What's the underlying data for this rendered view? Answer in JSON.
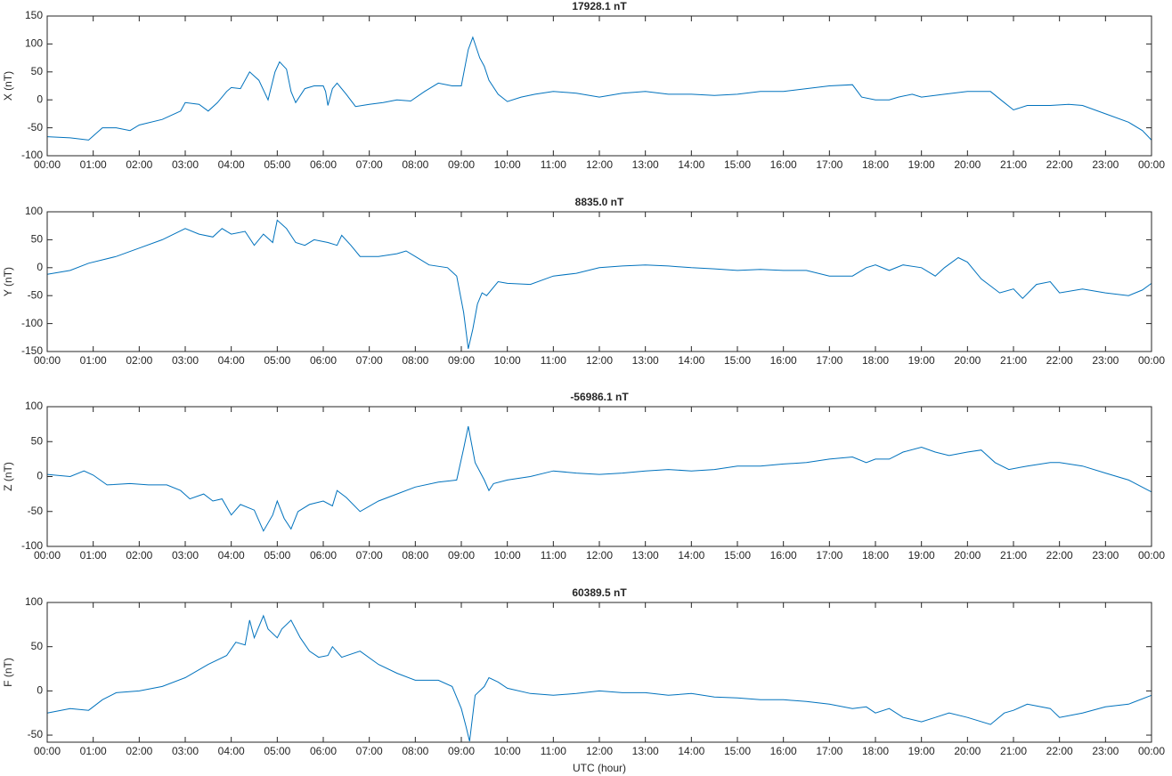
{
  "chart_data": [
    {
      "type": "line",
      "title": "17928.1 nT",
      "y_label": "X (nT)",
      "color": "#0072bd",
      "xlim": [
        0,
        24
      ],
      "ylim": [
        -100,
        150
      ],
      "yticks": [
        -100,
        -50,
        0,
        50,
        100,
        150
      ],
      "xticks": [
        {
          "value": 0,
          "label": "00:00"
        },
        {
          "value": 1,
          "label": "01:00"
        },
        {
          "value": 2,
          "label": "02:00"
        },
        {
          "value": 3,
          "label": "03:00"
        },
        {
          "value": 4,
          "label": "04:00"
        },
        {
          "value": 5,
          "label": "05:00"
        },
        {
          "value": 6,
          "label": "06:00"
        },
        {
          "value": 7,
          "label": "07:00"
        },
        {
          "value": 8,
          "label": "08:00"
        },
        {
          "value": 9,
          "label": "09:00"
        },
        {
          "value": 10,
          "label": "10:00"
        },
        {
          "value": 11,
          "label": "11:00"
        },
        {
          "value": 12,
          "label": "12:00"
        },
        {
          "value": 13,
          "label": "13:00"
        },
        {
          "value": 14,
          "label": "14:00"
        },
        {
          "value": 15,
          "label": "15:00"
        },
        {
          "value": 16,
          "label": "16:00"
        },
        {
          "value": 17,
          "label": "17:00"
        },
        {
          "value": 18,
          "label": "18:00"
        },
        {
          "value": 19,
          "label": "19:00"
        },
        {
          "value": 20,
          "label": "20:00"
        },
        {
          "value": 21,
          "label": "21:00"
        },
        {
          "value": 22,
          "label": "22:00"
        },
        {
          "value": 23,
          "label": "23:00"
        },
        {
          "value": 24,
          "label": "00:00"
        }
      ],
      "x": [
        0,
        0.5,
        0.9,
        1.2,
        1.5,
        1.8,
        2,
        2.5,
        2.9,
        3,
        3.3,
        3.5,
        3.7,
        3.9,
        4,
        4.2,
        4.4,
        4.6,
        4.8,
        4.95,
        5.05,
        5.2,
        5.3,
        5.4,
        5.6,
        5.8,
        6,
        6.05,
        6.1,
        6.2,
        6.3,
        6.5,
        6.7,
        7,
        7.3,
        7.6,
        7.9,
        8.2,
        8.5,
        8.8,
        9,
        9.15,
        9.25,
        9.4,
        9.5,
        9.6,
        9.8,
        10,
        10.3,
        10.6,
        11,
        11.5,
        12,
        12.5,
        13,
        13.5,
        14,
        14.5,
        15,
        15.5,
        16,
        16.5,
        17,
        17.5,
        17.7,
        18,
        18.3,
        18.5,
        18.8,
        19,
        19.5,
        20,
        20.5,
        20.8,
        21,
        21.3,
        21.8,
        22.2,
        22.5,
        23,
        23.5,
        23.8,
        24
      ],
      "values": [
        -66,
        -68,
        -72,
        -50,
        -50,
        -55,
        -45,
        -35,
        -20,
        -5,
        -8,
        -20,
        -5,
        15,
        22,
        20,
        50,
        35,
        0,
        50,
        68,
        55,
        15,
        -5,
        20,
        25,
        25,
        15,
        -10,
        20,
        30,
        10,
        -12,
        -8,
        -5,
        0,
        -2,
        15,
        30,
        25,
        25,
        90,
        112,
        75,
        60,
        35,
        10,
        -3,
        5,
        10,
        15,
        12,
        5,
        12,
        15,
        10,
        10,
        8,
        10,
        15,
        15,
        20,
        25,
        27,
        5,
        0,
        0,
        5,
        10,
        5,
        10,
        15,
        15,
        -5,
        -18,
        -10,
        -10,
        -8,
        -10,
        -25,
        -40,
        -55,
        -72
      ]
    },
    {
      "type": "line",
      "title": "8835.0 nT",
      "y_label": "Y (nT)",
      "color": "#0072bd",
      "xlim": [
        0,
        24
      ],
      "ylim": [
        -150,
        100
      ],
      "yticks": [
        -150,
        -100,
        -50,
        0,
        50,
        100
      ],
      "xticks": [
        {
          "value": 0,
          "label": "00:00"
        },
        {
          "value": 1,
          "label": "01:00"
        },
        {
          "value": 2,
          "label": "02:00"
        },
        {
          "value": 3,
          "label": "03:00"
        },
        {
          "value": 4,
          "label": "04:00"
        },
        {
          "value": 5,
          "label": "05:00"
        },
        {
          "value": 6,
          "label": "06:00"
        },
        {
          "value": 7,
          "label": "07:00"
        },
        {
          "value": 8,
          "label": "08:00"
        },
        {
          "value": 9,
          "label": "09:00"
        },
        {
          "value": 10,
          "label": "10:00"
        },
        {
          "value": 11,
          "label": "11:00"
        },
        {
          "value": 12,
          "label": "12:00"
        },
        {
          "value": 13,
          "label": "13:00"
        },
        {
          "value": 14,
          "label": "14:00"
        },
        {
          "value": 15,
          "label": "15:00"
        },
        {
          "value": 16,
          "label": "16:00"
        },
        {
          "value": 17,
          "label": "17:00"
        },
        {
          "value": 18,
          "label": "18:00"
        },
        {
          "value": 19,
          "label": "19:00"
        },
        {
          "value": 20,
          "label": "20:00"
        },
        {
          "value": 21,
          "label": "21:00"
        },
        {
          "value": 22,
          "label": "22:00"
        },
        {
          "value": 23,
          "label": "23:00"
        },
        {
          "value": 24,
          "label": "00:00"
        }
      ],
      "x": [
        0,
        0.5,
        0.9,
        1.5,
        2,
        2.5,
        3,
        3.3,
        3.6,
        3.8,
        4,
        4.3,
        4.5,
        4.7,
        4.9,
        5,
        5.2,
        5.4,
        5.6,
        5.8,
        6.1,
        6.3,
        6.4,
        6.6,
        6.8,
        7.2,
        7.6,
        7.8,
        8,
        8.3,
        8.7,
        8.9,
        9.05,
        9.15,
        9.25,
        9.35,
        9.45,
        9.55,
        9.8,
        10,
        10.5,
        11,
        11.5,
        12,
        12.5,
        13,
        13.5,
        14,
        14.5,
        15,
        15.5,
        16,
        16.5,
        17,
        17.5,
        17.8,
        18,
        18.3,
        18.6,
        19,
        19.3,
        19.5,
        19.8,
        20,
        20.3,
        20.7,
        21,
        21.2,
        21.5,
        21.8,
        22,
        22.5,
        23,
        23.5,
        23.8,
        24
      ],
      "values": [
        -12,
        -5,
        8,
        20,
        35,
        50,
        70,
        60,
        55,
        70,
        60,
        65,
        40,
        60,
        45,
        85,
        70,
        45,
        40,
        50,
        45,
        40,
        58,
        40,
        20,
        20,
        25,
        30,
        20,
        5,
        0,
        -15,
        -80,
        -145,
        -110,
        -65,
        -45,
        -50,
        -25,
        -28,
        -30,
        -15,
        -10,
        0,
        3,
        5,
        3,
        0,
        -2,
        -5,
        -3,
        -5,
        -5,
        -15,
        -15,
        0,
        5,
        -5,
        5,
        0,
        -15,
        0,
        18,
        10,
        -20,
        -45,
        -38,
        -55,
        -30,
        -25,
        -45,
        -38,
        -45,
        -50,
        -40,
        -28
      ]
    },
    {
      "type": "line",
      "title": "-56986.1 nT",
      "y_label": "Z (nT)",
      "color": "#0072bd",
      "xlim": [
        0,
        24
      ],
      "ylim": [
        -100,
        100
      ],
      "yticks": [
        -100,
        -50,
        0,
        50,
        100
      ],
      "xticks": [
        {
          "value": 0,
          "label": "00:00"
        },
        {
          "value": 1,
          "label": "01:00"
        },
        {
          "value": 2,
          "label": "02:00"
        },
        {
          "value": 3,
          "label": "03:00"
        },
        {
          "value": 4,
          "label": "04:00"
        },
        {
          "value": 5,
          "label": "05:00"
        },
        {
          "value": 6,
          "label": "06:00"
        },
        {
          "value": 7,
          "label": "07:00"
        },
        {
          "value": 8,
          "label": "08:00"
        },
        {
          "value": 9,
          "label": "09:00"
        },
        {
          "value": 10,
          "label": "10:00"
        },
        {
          "value": 11,
          "label": "11:00"
        },
        {
          "value": 12,
          "label": "12:00"
        },
        {
          "value": 13,
          "label": "13:00"
        },
        {
          "value": 14,
          "label": "14:00"
        },
        {
          "value": 15,
          "label": "15:00"
        },
        {
          "value": 16,
          "label": "16:00"
        },
        {
          "value": 17,
          "label": "17:00"
        },
        {
          "value": 18,
          "label": "18:00"
        },
        {
          "value": 19,
          "label": "19:00"
        },
        {
          "value": 20,
          "label": "20:00"
        },
        {
          "value": 21,
          "label": "21:00"
        },
        {
          "value": 22,
          "label": "22:00"
        },
        {
          "value": 23,
          "label": "23:00"
        },
        {
          "value": 24,
          "label": "00:00"
        }
      ],
      "x": [
        0,
        0.5,
        0.8,
        1,
        1.3,
        1.8,
        2.2,
        2.6,
        2.9,
        3.1,
        3.4,
        3.6,
        3.8,
        4,
        4.2,
        4.5,
        4.7,
        4.9,
        5,
        5.15,
        5.3,
        5.45,
        5.7,
        6,
        6.2,
        6.3,
        6.5,
        6.8,
        7.2,
        7.6,
        8,
        8.5,
        8.9,
        9.05,
        9.15,
        9.3,
        9.5,
        9.6,
        9.7,
        10,
        10.5,
        11,
        11.5,
        12,
        12.5,
        13,
        13.5,
        14,
        14.5,
        15,
        15.5,
        16,
        16.5,
        17,
        17.5,
        17.8,
        18,
        18.3,
        18.6,
        19,
        19.3,
        19.6,
        20,
        20.3,
        20.6,
        20.9,
        21.3,
        21.8,
        22,
        22.5,
        23,
        23.5,
        24
      ],
      "values": [
        3,
        0,
        8,
        2,
        -12,
        -10,
        -12,
        -12,
        -20,
        -32,
        -25,
        -35,
        -32,
        -55,
        -40,
        -48,
        -78,
        -55,
        -35,
        -60,
        -75,
        -50,
        -40,
        -35,
        -42,
        -20,
        -30,
        -50,
        -35,
        -25,
        -15,
        -8,
        -5,
        40,
        72,
        20,
        -5,
        -20,
        -10,
        -5,
        0,
        8,
        5,
        3,
        5,
        8,
        10,
        8,
        10,
        15,
        15,
        18,
        20,
        25,
        28,
        20,
        25,
        25,
        35,
        42,
        35,
        30,
        35,
        38,
        20,
        10,
        15,
        20,
        20,
        15,
        5,
        -5,
        -22
      ]
    },
    {
      "type": "line",
      "title": "60389.5 nT",
      "y_label": "F (nT)",
      "x_label": "UTC (hour)",
      "color": "#0072bd",
      "xlim": [
        0,
        24
      ],
      "ylim": [
        -58,
        100
      ],
      "yticks": [
        -50,
        0,
        50,
        100
      ],
      "xticks": [
        {
          "value": 0,
          "label": "00:00"
        },
        {
          "value": 1,
          "label": "01:00"
        },
        {
          "value": 2,
          "label": "02:00"
        },
        {
          "value": 3,
          "label": "03:00"
        },
        {
          "value": 4,
          "label": "04:00"
        },
        {
          "value": 5,
          "label": "05:00"
        },
        {
          "value": 6,
          "label": "06:00"
        },
        {
          "value": 7,
          "label": "07:00"
        },
        {
          "value": 8,
          "label": "08:00"
        },
        {
          "value": 9,
          "label": "09:00"
        },
        {
          "value": 10,
          "label": "10:00"
        },
        {
          "value": 11,
          "label": "11:00"
        },
        {
          "value": 12,
          "label": "12:00"
        },
        {
          "value": 13,
          "label": "13:00"
        },
        {
          "value": 14,
          "label": "14:00"
        },
        {
          "value": 15,
          "label": "15:00"
        },
        {
          "value": 16,
          "label": "16:00"
        },
        {
          "value": 17,
          "label": "17:00"
        },
        {
          "value": 18,
          "label": "18:00"
        },
        {
          "value": 19,
          "label": "19:00"
        },
        {
          "value": 20,
          "label": "20:00"
        },
        {
          "value": 21,
          "label": "21:00"
        },
        {
          "value": 22,
          "label": "22:00"
        },
        {
          "value": 23,
          "label": "23:00"
        },
        {
          "value": 24,
          "label": "00:00"
        }
      ],
      "x": [
        0,
        0.5,
        0.9,
        1.2,
        1.5,
        2,
        2.5,
        3,
        3.5,
        3.9,
        4.1,
        4.3,
        4.4,
        4.5,
        4.7,
        4.8,
        5,
        5.1,
        5.3,
        5.5,
        5.7,
        5.9,
        6.1,
        6.2,
        6.4,
        6.8,
        7.2,
        7.6,
        8,
        8.5,
        8.8,
        9,
        9.1,
        9.18,
        9.3,
        9.5,
        9.6,
        9.8,
        10,
        10.5,
        11,
        11.5,
        12,
        12.5,
        13,
        13.5,
        14,
        14.5,
        15,
        15.5,
        16,
        16.5,
        17,
        17.5,
        17.8,
        18,
        18.3,
        18.6,
        19,
        19.3,
        19.6,
        20,
        20.5,
        20.8,
        21,
        21.3,
        21.8,
        22,
        22.5,
        23,
        23.5,
        24
      ],
      "values": [
        -25,
        -20,
        -22,
        -10,
        -2,
        0,
        5,
        15,
        30,
        40,
        55,
        52,
        80,
        60,
        85,
        70,
        60,
        70,
        80,
        60,
        45,
        38,
        40,
        50,
        38,
        45,
        30,
        20,
        12,
        12,
        5,
        -20,
        -40,
        -57,
        -5,
        5,
        15,
        10,
        3,
        -3,
        -5,
        -3,
        0,
        -2,
        -2,
        -5,
        -3,
        -7,
        -8,
        -10,
        -10,
        -12,
        -15,
        -20,
        -18,
        -25,
        -20,
        -30,
        -35,
        -30,
        -25,
        -30,
        -38,
        -25,
        -22,
        -15,
        -20,
        -30,
        -25,
        -18,
        -15,
        -5
      ]
    }
  ]
}
